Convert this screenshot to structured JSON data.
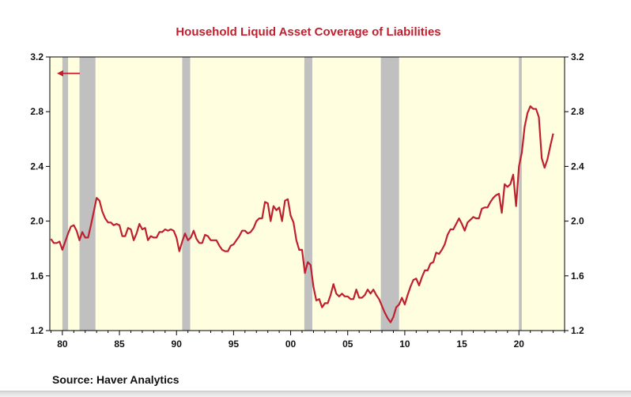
{
  "colors": {
    "line": "#c0202e",
    "plot_bg": "#ffffe0",
    "recession": "#c0c0c0",
    "axis": "#000000",
    "title": "#c0202e"
  },
  "source": "Source:  Haver Analytics",
  "chart_data": {
    "type": "line",
    "title": "Household Liquid Asset Coverage of Liabilities",
    "xlabel": "",
    "ylabel": "",
    "xlim": [
      1978.9,
      2024.0
    ],
    "ylim": [
      1.2,
      3.2
    ],
    "x_ticks": [
      1980,
      1985,
      1990,
      1995,
      2000,
      2005,
      2010,
      2015,
      2020
    ],
    "x_tick_labels": [
      "80",
      "85",
      "90",
      "95",
      "00",
      "05",
      "10",
      "15",
      "20"
    ],
    "y_ticks": [
      1.2,
      1.6,
      2.0,
      2.4,
      2.8,
      3.2
    ],
    "y_tick_labels": [
      "1.2",
      "1.6",
      "2.0",
      "2.4",
      "2.8",
      "3.2"
    ],
    "grid": false,
    "axis_indicator": "left",
    "recessions": [
      [
        1980.0,
        1980.5
      ],
      [
        1981.5,
        1982.9
      ],
      [
        1990.5,
        1991.2
      ],
      [
        2001.2,
        2001.9
      ],
      [
        2007.9,
        2009.5
      ],
      [
        2020.0,
        2020.25
      ]
    ],
    "series": [
      {
        "x": [
          1979.0,
          1979.25,
          1979.5,
          1979.75,
          1980.0,
          1980.25,
          1980.5,
          1980.75,
          1981.0,
          1981.25,
          1981.5,
          1981.75,
          1982.0,
          1982.25,
          1982.5,
          1982.75,
          1983.0,
          1983.25,
          1983.5,
          1983.75,
          1984.0,
          1984.25,
          1984.5,
          1984.75,
          1985.0,
          1985.25,
          1985.5,
          1985.75,
          1986.0,
          1986.25,
          1986.5,
          1986.75,
          1987.0,
          1987.25,
          1987.5,
          1987.75,
          1988.0,
          1988.25,
          1988.5,
          1988.75,
          1989.0,
          1989.25,
          1989.5,
          1989.75,
          1990.0,
          1990.25,
          1990.5,
          1990.75,
          1991.0,
          1991.25,
          1991.5,
          1991.75,
          1992.0,
          1992.25,
          1992.5,
          1992.75,
          1993.0,
          1993.25,
          1993.5,
          1993.75,
          1994.0,
          1994.25,
          1994.5,
          1994.75,
          1995.0,
          1995.25,
          1995.5,
          1995.75,
          1996.0,
          1996.25,
          1996.5,
          1996.75,
          1997.0,
          1997.25,
          1997.5,
          1997.75,
          1998.0,
          1998.25,
          1998.5,
          1998.75,
          1999.0,
          1999.25,
          1999.5,
          1999.75,
          2000.0,
          2000.25,
          2000.5,
          2000.75,
          2001.0,
          2001.25,
          2001.5,
          2001.75,
          2002.0,
          2002.25,
          2002.5,
          2002.75,
          2003.0,
          2003.25,
          2003.5,
          2003.75,
          2004.0,
          2004.25,
          2004.5,
          2004.75,
          2005.0,
          2005.25,
          2005.5,
          2005.75,
          2006.0,
          2006.25,
          2006.5,
          2006.75,
          2007.0,
          2007.25,
          2007.5,
          2007.75,
          2008.0,
          2008.25,
          2008.5,
          2008.75,
          2009.0,
          2009.25,
          2009.5,
          2009.75,
          2010.0,
          2010.25,
          2010.5,
          2010.75,
          2011.0,
          2011.25,
          2011.5,
          2011.75,
          2012.0,
          2012.25,
          2012.5,
          2012.75,
          2013.0,
          2013.25,
          2013.5,
          2013.75,
          2014.0,
          2014.25,
          2014.5,
          2014.75,
          2015.0,
          2015.25,
          2015.5,
          2015.75,
          2016.0,
          2016.25,
          2016.5,
          2016.75,
          2017.0,
          2017.25,
          2017.5,
          2017.75,
          2018.0,
          2018.25,
          2018.5,
          2018.75,
          2019.0,
          2019.25,
          2019.5,
          2019.75,
          2020.0,
          2020.25,
          2020.5,
          2020.75,
          2021.0,
          2021.25,
          2021.5,
          2021.75,
          2022.0,
          2022.25,
          2022.5,
          2022.75,
          2023.0
        ],
        "values": [
          1.87,
          1.84,
          1.84,
          1.85,
          1.79,
          1.85,
          1.91,
          1.96,
          1.97,
          1.93,
          1.86,
          1.92,
          1.88,
          1.88,
          1.97,
          2.07,
          2.17,
          2.15,
          2.07,
          2.02,
          1.99,
          1.99,
          1.97,
          1.98,
          1.97,
          1.89,
          1.89,
          1.95,
          1.94,
          1.86,
          1.91,
          1.98,
          1.94,
          1.95,
          1.86,
          1.89,
          1.88,
          1.88,
          1.92,
          1.92,
          1.94,
          1.93,
          1.94,
          1.93,
          1.88,
          1.78,
          1.85,
          1.91,
          1.86,
          1.88,
          1.93,
          1.87,
          1.84,
          1.84,
          1.9,
          1.89,
          1.86,
          1.86,
          1.86,
          1.82,
          1.79,
          1.78,
          1.78,
          1.82,
          1.83,
          1.86,
          1.89,
          1.93,
          1.93,
          1.91,
          1.92,
          1.95,
          2.0,
          2.02,
          2.02,
          2.14,
          2.13,
          2.0,
          2.11,
          2.08,
          2.1,
          2.0,
          2.15,
          2.16,
          2.04,
          1.99,
          1.86,
          1.79,
          1.79,
          1.62,
          1.7,
          1.68,
          1.52,
          1.42,
          1.43,
          1.37,
          1.4,
          1.4,
          1.46,
          1.54,
          1.47,
          1.45,
          1.47,
          1.45,
          1.45,
          1.43,
          1.43,
          1.5,
          1.44,
          1.44,
          1.46,
          1.5,
          1.47,
          1.5,
          1.46,
          1.43,
          1.38,
          1.33,
          1.29,
          1.26,
          1.3,
          1.37,
          1.39,
          1.44,
          1.39,
          1.46,
          1.52,
          1.57,
          1.58,
          1.53,
          1.59,
          1.64,
          1.64,
          1.69,
          1.7,
          1.77,
          1.76,
          1.79,
          1.83,
          1.9,
          1.94,
          1.94,
          1.98,
          2.02,
          1.98,
          1.93,
          1.99,
          2.01,
          2.03,
          2.02,
          2.02,
          2.09,
          2.1,
          2.1,
          2.14,
          2.17,
          2.19,
          2.2,
          2.06,
          2.27,
          2.25,
          2.27,
          2.34,
          2.11,
          2.4,
          2.5,
          2.69,
          2.79,
          2.84,
          2.82,
          2.82,
          2.76,
          2.46,
          2.39,
          2.45,
          2.55,
          2.64
        ]
      }
    ]
  }
}
